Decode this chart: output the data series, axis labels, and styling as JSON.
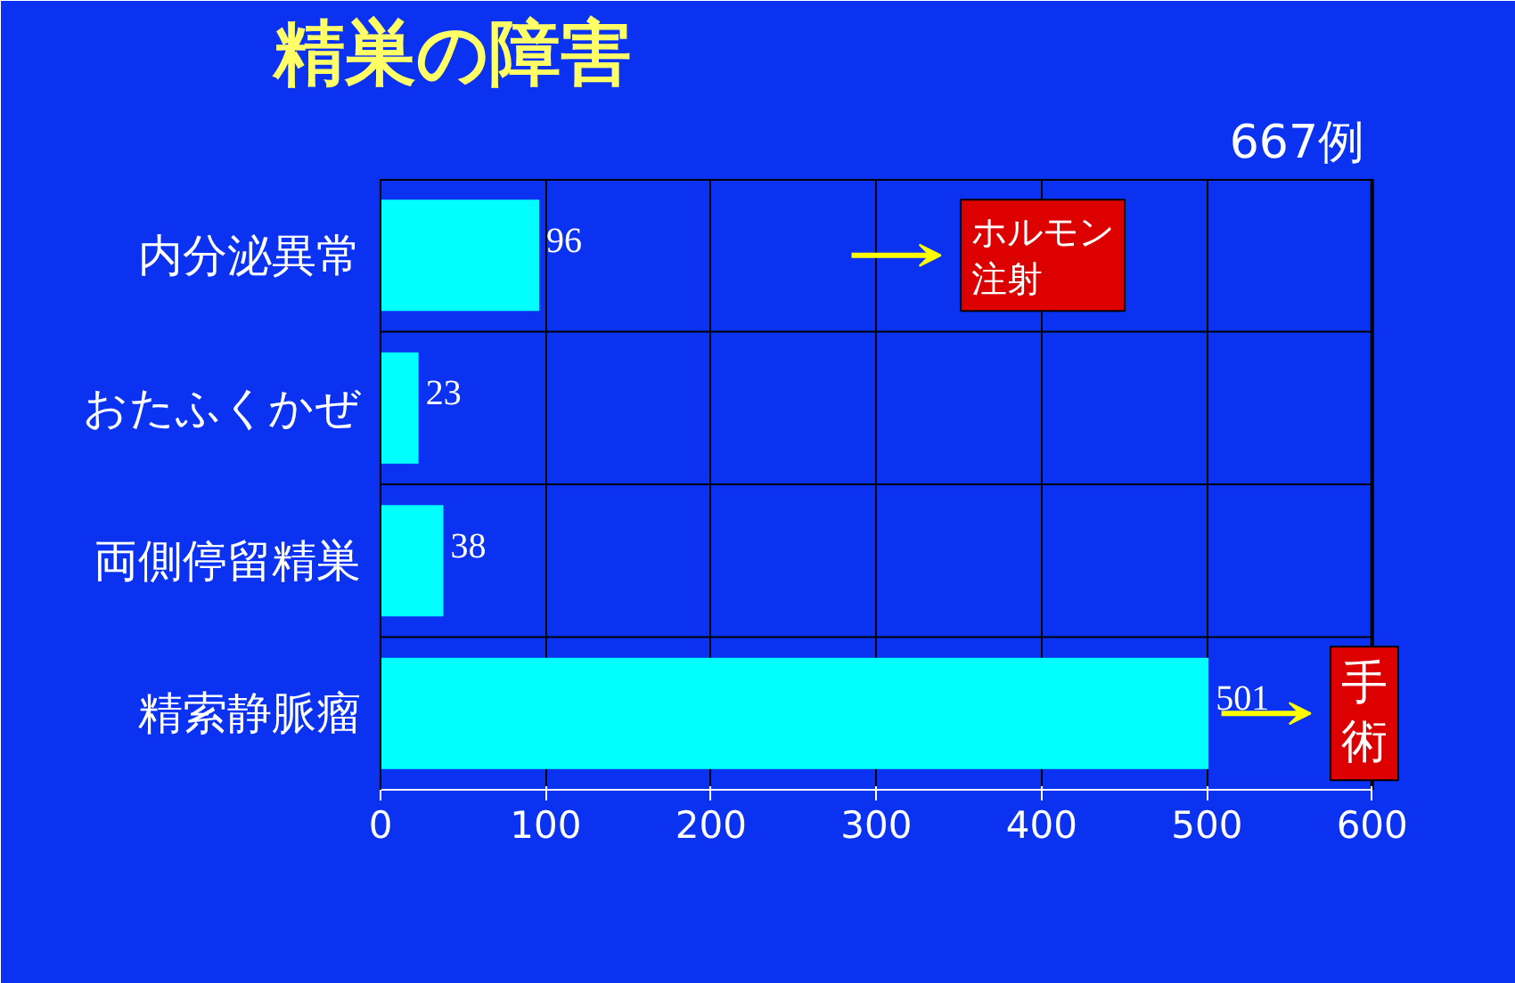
{
  "chart_data": {
    "type": "bar",
    "orientation": "horizontal",
    "title": "精巣の障害",
    "subtitle": "667例",
    "categories": [
      "内分泌異常",
      "おたふくかぜ",
      "両側停留精巣",
      "精索静脈瘤"
    ],
    "values": [
      96,
      23,
      38,
      501
    ],
    "color": "#00ffff",
    "data_labels": true,
    "xlim": [
      0,
      600
    ],
    "xticks": [
      0,
      100,
      200,
      300,
      400,
      500,
      600
    ],
    "grid": true,
    "annotations": [
      "ホルモン注射",
      "手術"
    ]
  }
}
